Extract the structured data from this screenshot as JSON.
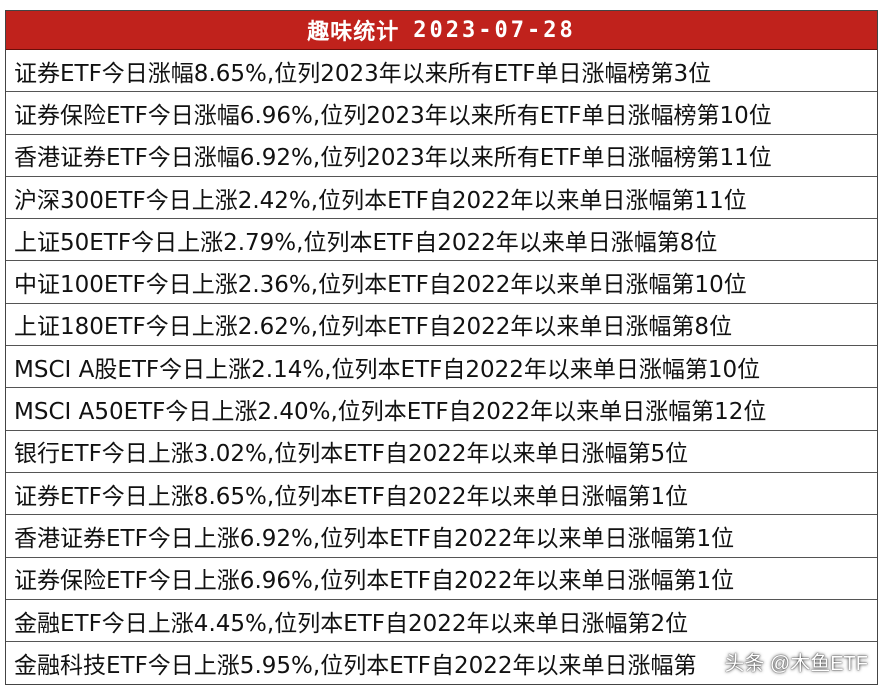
{
  "header": {
    "title": "趣味统计",
    "date": "2023-07-28",
    "background": "#c0221c"
  },
  "rows": [
    "证券ETF今日涨幅8.65%,位列2023年以来所有ETF单日涨幅榜第3位",
    "证券保险ETF今日涨幅6.96%,位列2023年以来所有ETF单日涨幅榜第10位",
    "香港证券ETF今日涨幅6.92%,位列2023年以来所有ETF单日涨幅榜第11位",
    "沪深300ETF今日上涨2.42%,位列本ETF自2022年以来单日涨幅第11位",
    "上证50ETF今日上涨2.79%,位列本ETF自2022年以来单日涨幅第8位",
    "中证100ETF今日上涨2.36%,位列本ETF自2022年以来单日涨幅第10位",
    "上证180ETF今日上涨2.62%,位列本ETF自2022年以来单日涨幅第8位",
    "MSCI A股ETF今日上涨2.14%,位列本ETF自2022年以来单日涨幅第10位",
    "MSCI A50ETF今日上涨2.40%,位列本ETF自2022年以来单日涨幅第12位",
    "银行ETF今日上涨3.02%,位列本ETF自2022年以来单日涨幅第5位",
    "证券ETF今日上涨8.65%,位列本ETF自2022年以来单日涨幅第1位",
    "香港证券ETF今日上涨6.92%,位列本ETF自2022年以来单日涨幅第1位",
    "证券保险ETF今日上涨6.96%,位列本ETF自2022年以来单日涨幅第1位",
    "金融ETF今日上涨4.45%,位列本ETF自2022年以来单日涨幅第2位",
    "金融科技ETF今日上涨5.95%,位列本ETF自2022年以来单日涨幅第"
  ],
  "watermark": "头条 @木鱼ETF"
}
